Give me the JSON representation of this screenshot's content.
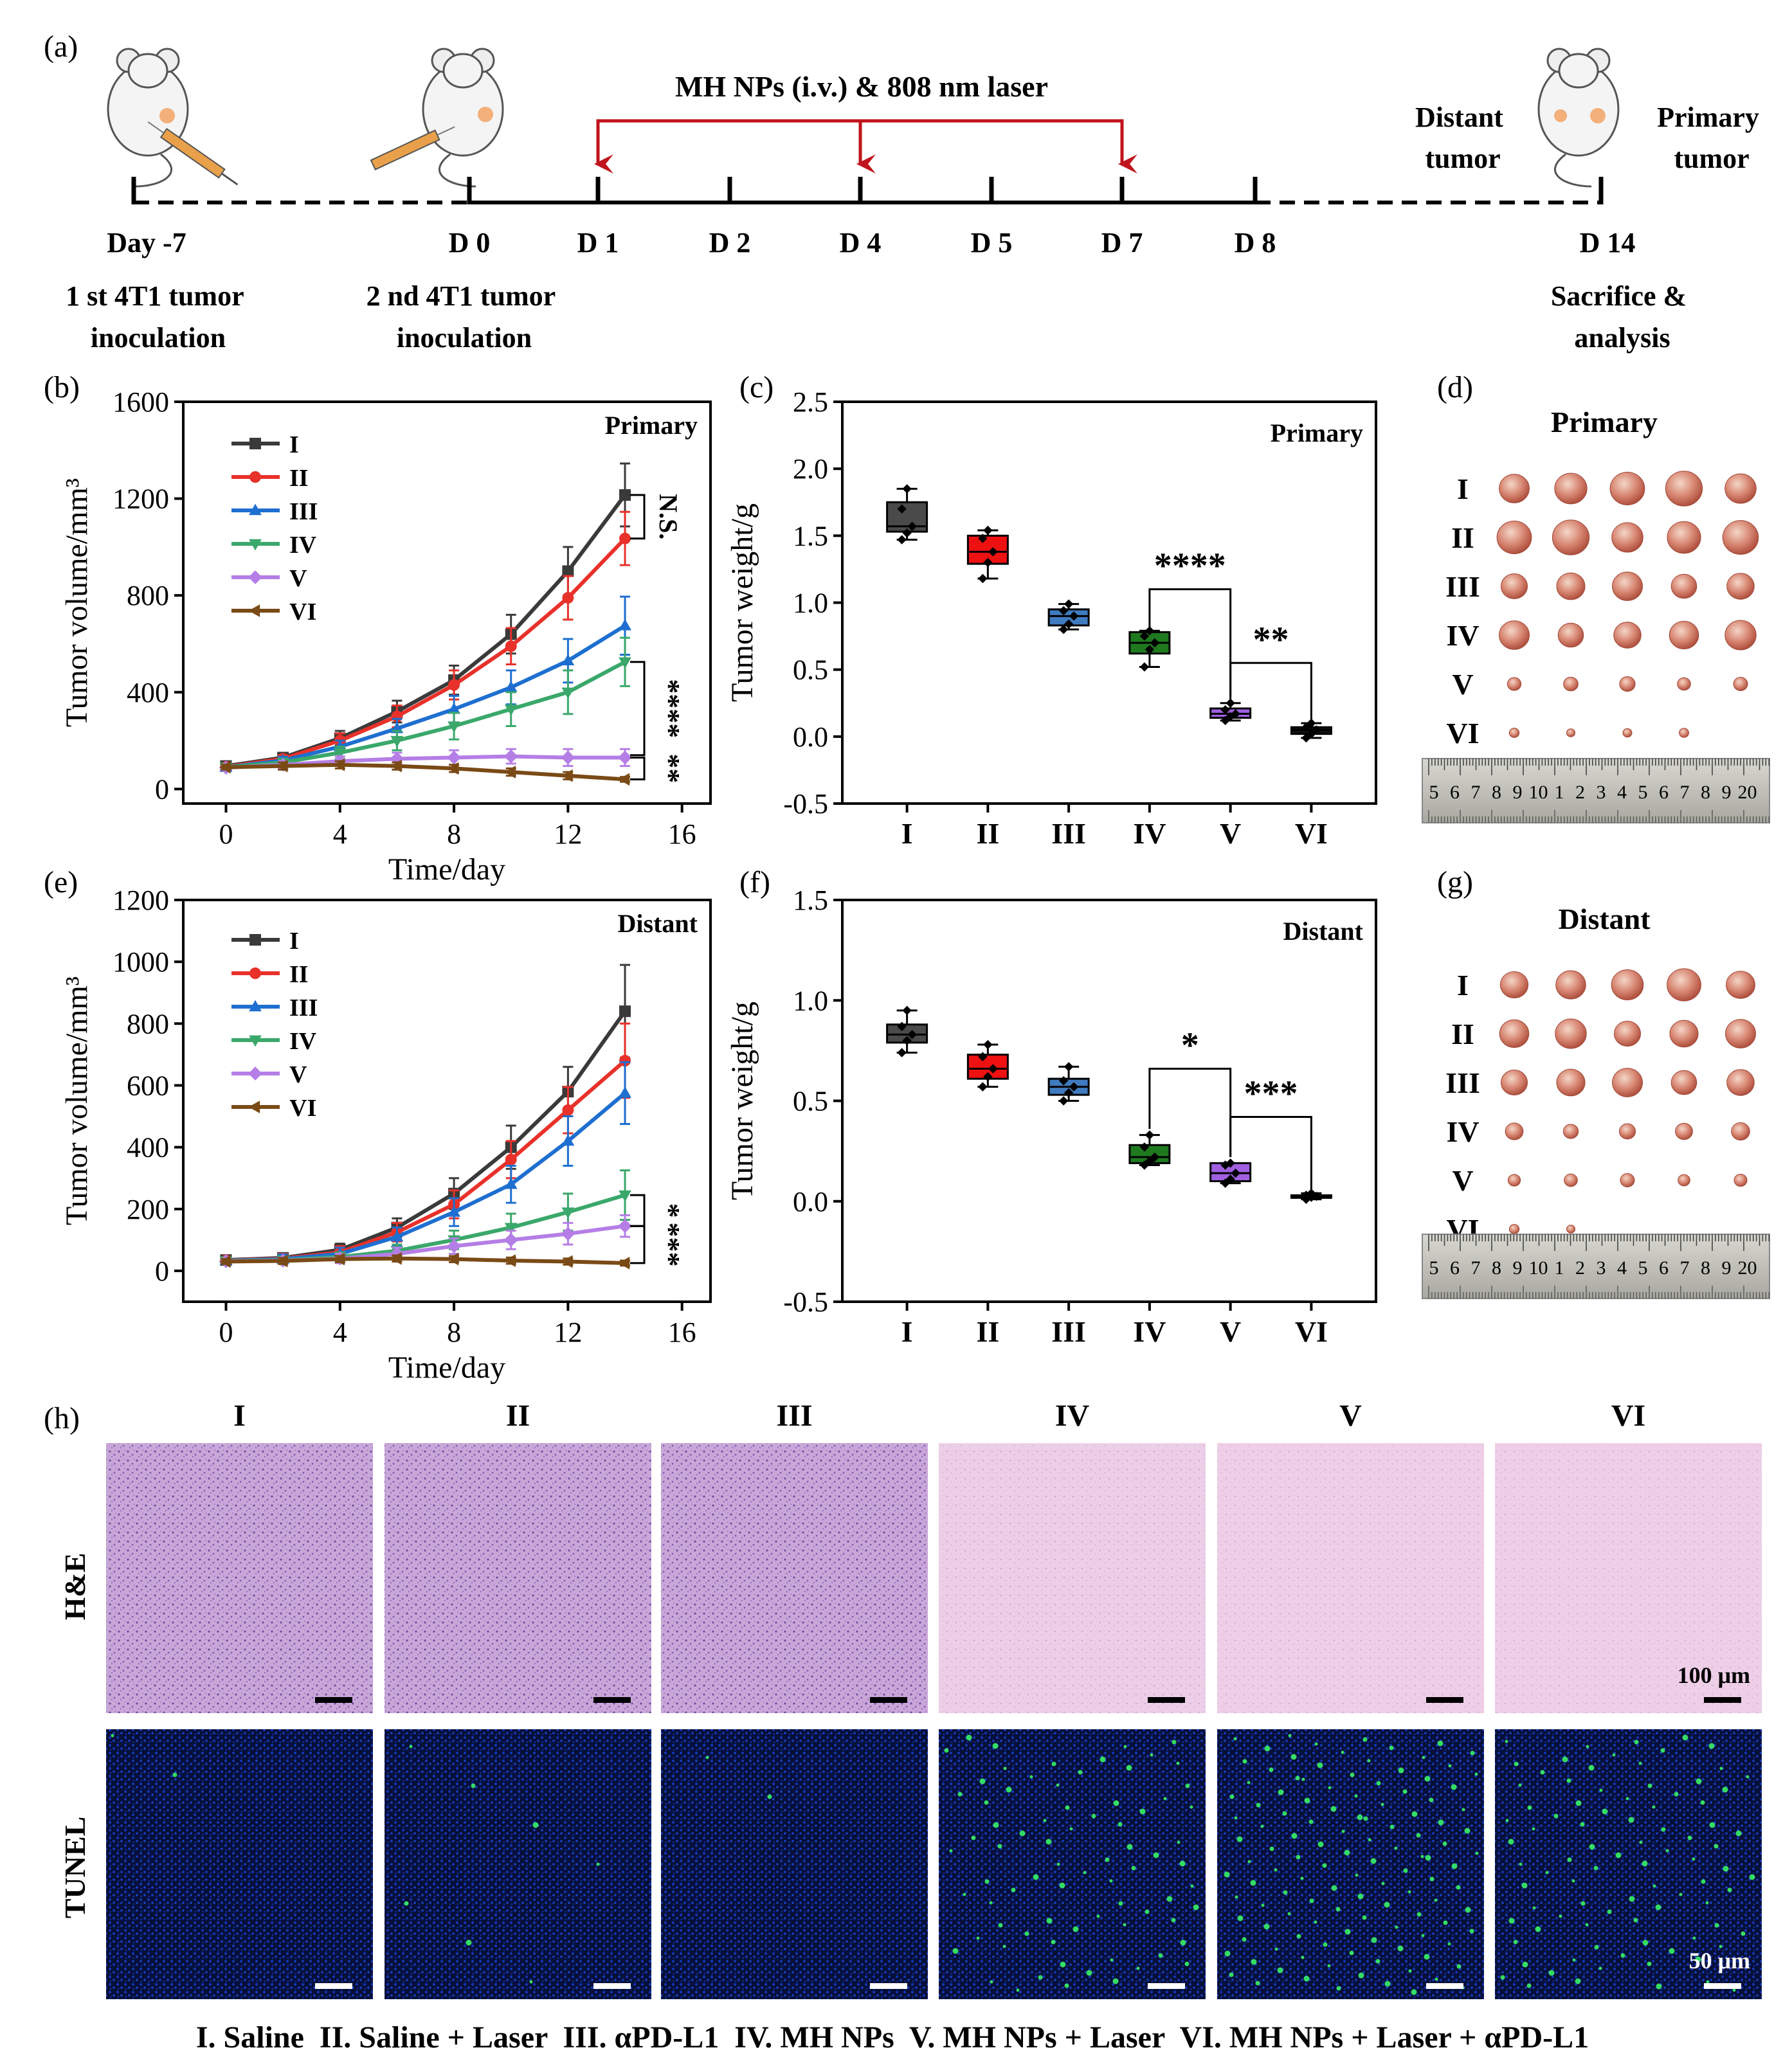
{
  "panels": {
    "a": "(a)",
    "b": "(b)",
    "c": "(c)",
    "d": "(d)",
    "e": "(e)",
    "f": "(f)",
    "g": "(g)",
    "h": "(h)"
  },
  "timeline": {
    "treatment_label": "MH NPs (i.v.) & 808 nm laser",
    "distant_tumor": [
      "Distant",
      "tumor"
    ],
    "primary_tumor": [
      "Primary",
      "tumor"
    ],
    "days": [
      "Day -7",
      "D 0",
      "D 1",
      "D 2",
      "D 4",
      "D 5",
      "D 7",
      "D 8",
      "D 14"
    ],
    "event_first": [
      "1 st 4T1 tumor",
      "inoculation"
    ],
    "event_second": [
      "2 nd 4T1 tumor",
      "inoculation"
    ],
    "event_end": [
      "Sacrifice &",
      "analysis"
    ],
    "arrow_color": "#c0141c"
  },
  "groups": [
    "I",
    "II",
    "III",
    "IV",
    "V",
    "VI"
  ],
  "colors": [
    "#3a3a3a",
    "#e8312a",
    "#1e6fd0",
    "#3aa86a",
    "#b57ee6",
    "#7a4a16"
  ],
  "box_colors": [
    "#4a4a4a",
    "#ee1111",
    "#3f7bbf",
    "#1f7a1f",
    "#a060e0",
    "#111111"
  ],
  "photo_titles": {
    "primary": "Primary",
    "distant": "Distant"
  },
  "ruler_digits": [
    "5",
    "6",
    "7",
    "8",
    "9",
    "10",
    "1",
    "2",
    "3",
    "4",
    "5",
    "6",
    "7",
    "8",
    "9",
    "20"
  ],
  "chart_data": [
    {
      "type": "line",
      "panel": "b",
      "title": "Primary",
      "xlabel": "Time/day",
      "ylabel": "Tumor volume/mm³",
      "xlim": [
        -1.5,
        17
      ],
      "ylim": [
        -60,
        1600
      ],
      "xticks": [
        0,
        4,
        8,
        12,
        16
      ],
      "yticks": [
        0,
        400,
        800,
        1200,
        1600
      ],
      "x": [
        0,
        2,
        4,
        6,
        8,
        10,
        12,
        14
      ],
      "series": [
        {
          "name": "I",
          "values": [
            95,
            130,
            210,
            320,
            450,
            640,
            900,
            1215
          ],
          "err": [
            10,
            15,
            30,
            45,
            60,
            80,
            100,
            130
          ]
        },
        {
          "name": "II",
          "values": [
            92,
            125,
            200,
            300,
            430,
            590,
            790,
            1035
          ],
          "err": [
            10,
            15,
            30,
            45,
            60,
            75,
            90,
            110
          ]
        },
        {
          "name": "III",
          "values": [
            90,
            118,
            175,
            250,
            330,
            420,
            530,
            675
          ],
          "err": [
            10,
            15,
            25,
            40,
            55,
            70,
            90,
            120
          ]
        },
        {
          "name": "IV",
          "values": [
            90,
            110,
            150,
            200,
            260,
            330,
            400,
            525
          ],
          "err": [
            10,
            15,
            25,
            40,
            55,
            70,
            90,
            100
          ]
        },
        {
          "name": "V",
          "values": [
            88,
            100,
            115,
            125,
            130,
            135,
            130,
            130
          ],
          "err": [
            10,
            15,
            20,
            25,
            30,
            30,
            35,
            35
          ]
        },
        {
          "name": "VI",
          "values": [
            90,
            95,
            100,
            95,
            85,
            70,
            55,
            40
          ],
          "err": [
            10,
            15,
            15,
            15,
            15,
            15,
            15,
            10
          ]
        }
      ],
      "significance": [
        {
          "label": "N.S."
        },
        {
          "label": "****"
        },
        {
          "label": "**"
        }
      ]
    },
    {
      "type": "box",
      "panel": "c",
      "title": "Primary",
      "ylabel": "Tumor weight/g",
      "ylim": [
        -0.5,
        2.5
      ],
      "yticks": [
        "-0.5",
        "0.0",
        "0.5",
        "1.0",
        "1.5",
        "2.0",
        "2.5"
      ],
      "categories": [
        "I",
        "II",
        "III",
        "IV",
        "V",
        "VI"
      ],
      "boxes": [
        {
          "min": 1.47,
          "q1": 1.53,
          "median": 1.57,
          "q3": 1.75,
          "max": 1.85,
          "points": [
            1.47,
            1.52,
            1.57,
            1.7,
            1.85
          ]
        },
        {
          "min": 1.18,
          "q1": 1.29,
          "median": 1.38,
          "q3": 1.5,
          "max": 1.54,
          "points": [
            1.18,
            1.3,
            1.38,
            1.48,
            1.54
          ]
        },
        {
          "min": 0.8,
          "q1": 0.83,
          "median": 0.9,
          "q3": 0.95,
          "max": 0.99,
          "points": [
            0.8,
            0.84,
            0.9,
            0.94,
            0.99
          ]
        },
        {
          "min": 0.52,
          "q1": 0.62,
          "median": 0.7,
          "q3": 0.78,
          "max": 0.79,
          "points": [
            0.52,
            0.65,
            0.7,
            0.75,
            0.79
          ]
        },
        {
          "min": 0.12,
          "q1": 0.14,
          "median": 0.17,
          "q3": 0.21,
          "max": 0.25,
          "points": [
            0.12,
            0.15,
            0.17,
            0.2,
            0.25
          ]
        },
        {
          "min": -0.01,
          "q1": 0.02,
          "median": 0.05,
          "q3": 0.07,
          "max": 0.1,
          "points": [
            -0.01,
            0.02,
            0.05,
            0.07,
            0.1
          ]
        }
      ],
      "significance": [
        {
          "label": "****",
          "from": "IV",
          "to": "V"
        },
        {
          "label": "**",
          "from": "V",
          "to": "VI"
        }
      ]
    },
    {
      "type": "line",
      "panel": "e",
      "title": "Distant",
      "xlabel": "Time/day",
      "ylabel": "Tumor volume/mm³",
      "xlim": [
        -1.5,
        17
      ],
      "ylim": [
        -100,
        1200
      ],
      "xticks": [
        0,
        4,
        8,
        12,
        16
      ],
      "yticks": [
        0,
        200,
        400,
        600,
        800,
        1000,
        1200
      ],
      "x": [
        0,
        2,
        4,
        6,
        8,
        10,
        12,
        14
      ],
      "series": [
        {
          "name": "I",
          "values": [
            35,
            42,
            68,
            140,
            250,
            400,
            580,
            840
          ],
          "err": [
            10,
            15,
            20,
            30,
            50,
            70,
            80,
            150
          ]
        },
        {
          "name": "II",
          "values": [
            34,
            40,
            60,
            125,
            215,
            360,
            520,
            680
          ],
          "err": [
            10,
            15,
            20,
            30,
            45,
            60,
            75,
            120
          ]
        },
        {
          "name": "III",
          "values": [
            33,
            38,
            55,
            110,
            190,
            280,
            420,
            575
          ],
          "err": [
            10,
            15,
            20,
            30,
            45,
            60,
            80,
            100
          ]
        },
        {
          "name": "IV",
          "values": [
            32,
            35,
            45,
            65,
            100,
            140,
            190,
            245
          ],
          "err": [
            8,
            10,
            15,
            20,
            30,
            45,
            60,
            80
          ]
        },
        {
          "name": "V",
          "values": [
            31,
            33,
            40,
            55,
            80,
            100,
            120,
            145
          ],
          "err": [
            8,
            10,
            15,
            20,
            25,
            30,
            35,
            35
          ]
        },
        {
          "name": "VI",
          "values": [
            30,
            32,
            38,
            40,
            38,
            33,
            30,
            25
          ],
          "err": [
            8,
            10,
            10,
            10,
            10,
            10,
            10,
            8
          ]
        }
      ],
      "significance": [
        {
          "label": "*"
        },
        {
          "label": "***"
        }
      ]
    },
    {
      "type": "box",
      "panel": "f",
      "title": "Distant",
      "ylabel": "Tumor weight/g",
      "ylim": [
        -0.5,
        1.5
      ],
      "yticks": [
        "-0.5",
        "0.0",
        "0.5",
        "1.0",
        "1.5"
      ],
      "categories": [
        "I",
        "II",
        "III",
        "IV",
        "V",
        "VI"
      ],
      "boxes": [
        {
          "min": 0.74,
          "q1": 0.79,
          "median": 0.83,
          "q3": 0.88,
          "max": 0.95,
          "points": [
            0.74,
            0.8,
            0.83,
            0.87,
            0.95
          ]
        },
        {
          "min": 0.57,
          "q1": 0.61,
          "median": 0.66,
          "q3": 0.73,
          "max": 0.78,
          "points": [
            0.57,
            0.62,
            0.66,
            0.72,
            0.78
          ]
        },
        {
          "min": 0.5,
          "q1": 0.53,
          "median": 0.57,
          "q3": 0.61,
          "max": 0.67,
          "points": [
            0.5,
            0.54,
            0.57,
            0.6,
            0.67
          ]
        },
        {
          "min": 0.18,
          "q1": 0.19,
          "median": 0.22,
          "q3": 0.28,
          "max": 0.33,
          "points": [
            0.18,
            0.2,
            0.22,
            0.27,
            0.33
          ]
        },
        {
          "min": 0.09,
          "q1": 0.1,
          "median": 0.14,
          "q3": 0.19,
          "max": 0.19,
          "points": [
            0.09,
            0.11,
            0.14,
            0.18,
            0.19
          ]
        },
        {
          "min": 0.01,
          "q1": 0.02,
          "median": 0.025,
          "q3": 0.03,
          "max": 0.04,
          "points": [
            0.01,
            0.02,
            0.025,
            0.03,
            0.04
          ]
        }
      ],
      "significance": [
        {
          "label": "*",
          "from": "IV",
          "to": "V"
        },
        {
          "label": "***",
          "from": "V",
          "to": "VI"
        }
      ]
    }
  ],
  "histology": {
    "row_he": "H&E",
    "row_tunel": "TUNEL",
    "scale_he": "100 μm",
    "scale_tunel": "50 μm",
    "tunel_density": [
      0.01,
      0.03,
      0.01,
      0.35,
      0.55,
      0.4
    ]
  },
  "caption": "I. Saline  II. Saline + Laser  III. αPD-L1  IV. MH NPs  V. MH NPs + Laser  VI. MH NPs + Laser + αPD-L1"
}
